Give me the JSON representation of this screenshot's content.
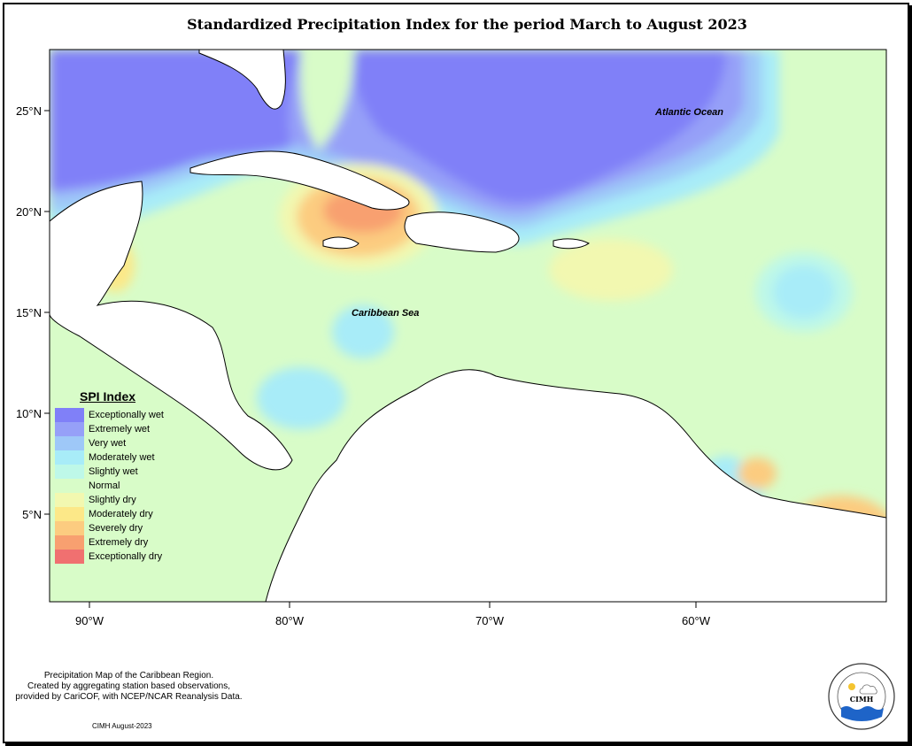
{
  "title": "Standardized Precipitation Index for the period March to August 2023",
  "axes": {
    "lat_labels": [
      "25°N",
      "20°N",
      "15°N",
      "10°N",
      "5°N"
    ],
    "lon_labels": [
      "90°W",
      "80°W",
      "70°W",
      "60°W"
    ]
  },
  "map_labels": {
    "atlantic": "Atlantic Ocean",
    "caribbean": "Caribbean Sea"
  },
  "legend": {
    "title": "SPI Index",
    "items": [
      {
        "label": "Exceptionally wet",
        "color": "#8080f8"
      },
      {
        "label": "Extremely wet",
        "color": "#96a0f8"
      },
      {
        "label": "Very wet",
        "color": "#9ec8f8"
      },
      {
        "label": "Moderately wet",
        "color": "#a8ecf8"
      },
      {
        "label": "Slightly wet",
        "color": "#bef8e8"
      },
      {
        "label": "Normal",
        "color": "#d8fcc8"
      },
      {
        "label": "Slightly dry",
        "color": "#f2f8b0"
      },
      {
        "label": "Moderately dry",
        "color": "#fce888"
      },
      {
        "label": "Severely dry",
        "color": "#fccc80"
      },
      {
        "label": "Extremely dry",
        "color": "#f8a070"
      },
      {
        "label": "Exceptionally dry",
        "color": "#f07070"
      }
    ]
  },
  "caption": {
    "lines": [
      "Precipitation Map of the Caribbean Region.",
      "Created by aggregating station based observations,",
      "provided by CariCOF, with NCEP/NCAR Reanalysis Data."
    ],
    "credit": "CIMH August-2023"
  },
  "logo": {
    "text": "CIMH",
    "ring_text": "Caribbean Institute for Meteorology and Hydrology"
  }
}
